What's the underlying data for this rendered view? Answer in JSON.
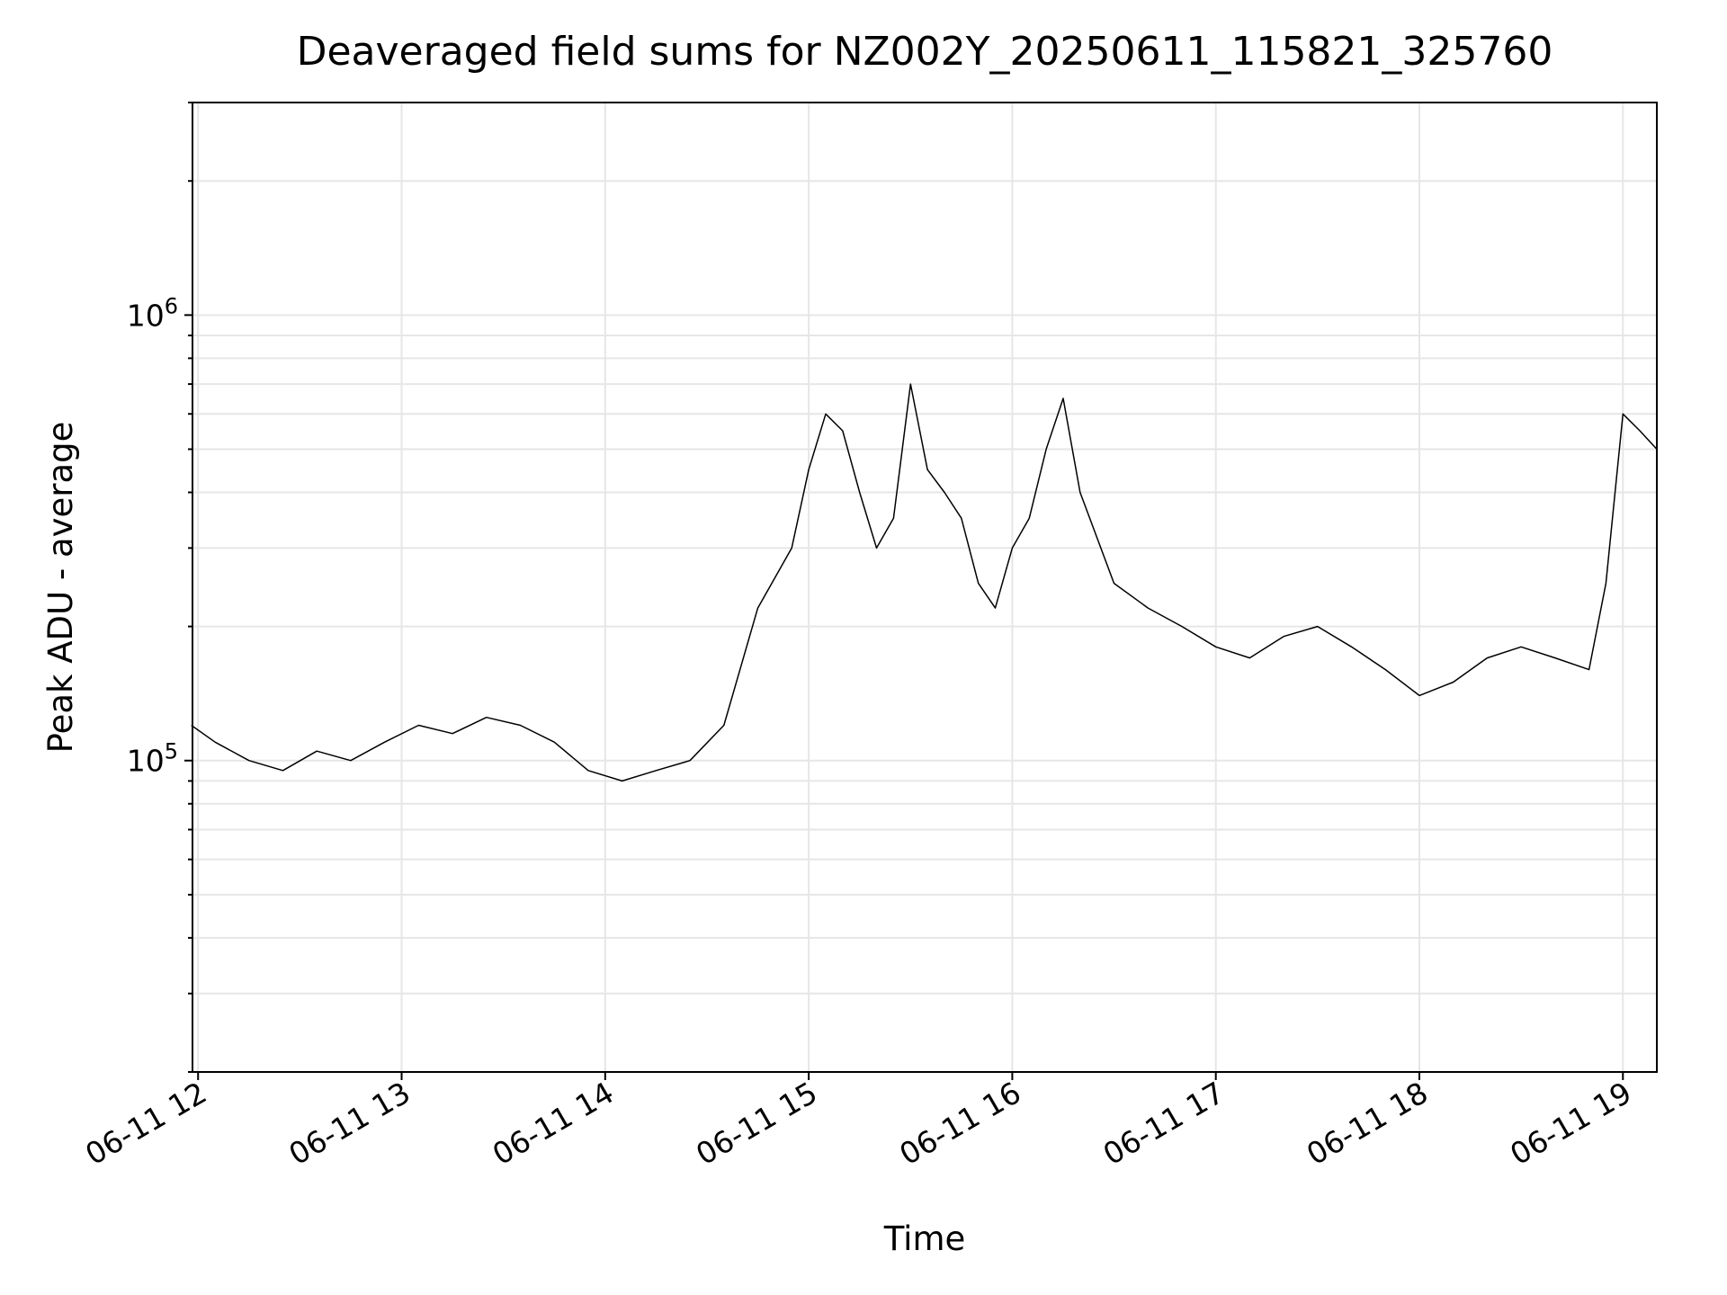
{
  "chart_data": {
    "type": "line",
    "title": "Deaveraged field sums for NZ002Y_20250611_115821_325760",
    "xlabel": "Time",
    "ylabel": "Peak ADU - average",
    "yscale": "log",
    "ylim": [
      20000,
      3000000
    ],
    "xlim": [
      "2025-06-11 11:58:21",
      "2025-06-11 19:10:00"
    ],
    "grid": true,
    "line_color": "#000000",
    "grid_color": "#e6e6e6",
    "x_ticks": [
      {
        "value": "2025-06-11 12:00",
        "label": "06-11 12"
      },
      {
        "value": "2025-06-11 13:00",
        "label": "06-11 13"
      },
      {
        "value": "2025-06-11 14:00",
        "label": "06-11 14"
      },
      {
        "value": "2025-06-11 15:00",
        "label": "06-11 15"
      },
      {
        "value": "2025-06-11 16:00",
        "label": "06-11 16"
      },
      {
        "value": "2025-06-11 17:00",
        "label": "06-11 17"
      },
      {
        "value": "2025-06-11 18:00",
        "label": "06-11 18"
      },
      {
        "value": "2025-06-11 19:00",
        "label": "06-11 19"
      }
    ],
    "y_ticks": [
      {
        "value": 100000,
        "base": "10",
        "exp": "5"
      },
      {
        "value": 1000000,
        "base": "10",
        "exp": "6"
      }
    ],
    "series": [
      {
        "x": [
          "2025-06-11 11:58",
          "2025-06-11 12:05",
          "2025-06-11 12:15",
          "2025-06-11 12:25",
          "2025-06-11 12:35",
          "2025-06-11 12:45",
          "2025-06-11 12:55",
          "2025-06-11 13:05",
          "2025-06-11 13:15",
          "2025-06-11 13:25",
          "2025-06-11 13:35",
          "2025-06-11 13:45",
          "2025-06-11 13:55",
          "2025-06-11 14:05",
          "2025-06-11 14:15",
          "2025-06-11 14:25",
          "2025-06-11 14:35",
          "2025-06-11 14:45",
          "2025-06-11 14:55",
          "2025-06-11 15:00",
          "2025-06-11 15:05",
          "2025-06-11 15:10",
          "2025-06-11 15:15",
          "2025-06-11 15:20",
          "2025-06-11 15:25",
          "2025-06-11 15:30",
          "2025-06-11 15:35",
          "2025-06-11 15:40",
          "2025-06-11 15:45",
          "2025-06-11 15:50",
          "2025-06-11 15:55",
          "2025-06-11 16:00",
          "2025-06-11 16:05",
          "2025-06-11 16:10",
          "2025-06-11 16:15",
          "2025-06-11 16:20",
          "2025-06-11 16:30",
          "2025-06-11 16:40",
          "2025-06-11 16:50",
          "2025-06-11 17:00",
          "2025-06-11 17:10",
          "2025-06-11 17:20",
          "2025-06-11 17:30",
          "2025-06-11 17:40",
          "2025-06-11 17:50",
          "2025-06-11 18:00",
          "2025-06-11 18:10",
          "2025-06-11 18:20",
          "2025-06-11 18:30",
          "2025-06-11 18:40",
          "2025-06-11 18:50",
          "2025-06-11 18:55",
          "2025-06-11 19:00",
          "2025-06-11 19:05",
          "2025-06-11 19:10"
        ],
        "y": [
          120000,
          110000,
          100000,
          95000,
          105000,
          100000,
          110000,
          120000,
          115000,
          125000,
          120000,
          110000,
          95000,
          90000,
          95000,
          100000,
          120000,
          220000,
          300000,
          450000,
          600000,
          550000,
          400000,
          300000,
          350000,
          700000,
          450000,
          400000,
          350000,
          250000,
          220000,
          300000,
          350000,
          500000,
          650000,
          400000,
          250000,
          220000,
          200000,
          180000,
          170000,
          190000,
          200000,
          180000,
          160000,
          140000,
          150000,
          170000,
          180000,
          170000,
          160000,
          250000,
          600000,
          550000,
          500000
        ]
      }
    ]
  }
}
